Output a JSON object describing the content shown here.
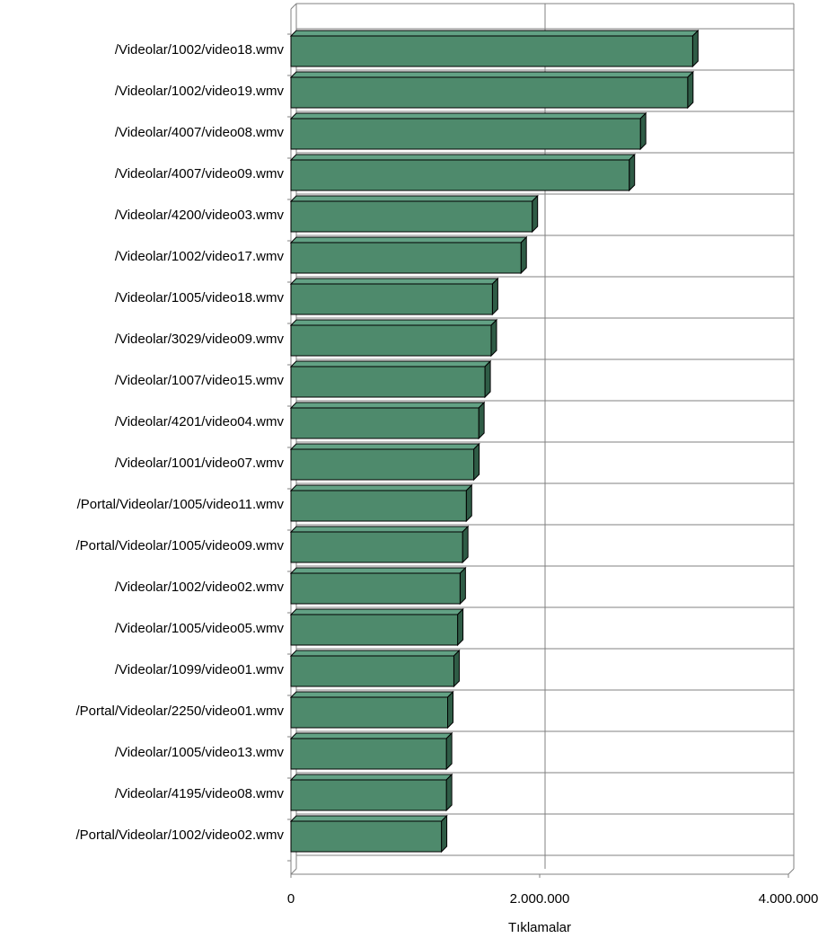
{
  "chart_data": {
    "type": "bar",
    "orientation": "horizontal",
    "bar_style": "3d",
    "categories": [
      "/Videolar/1002/video18.wmv",
      "/Videolar/1002/video19.wmv",
      "/Videolar/4007/video08.wmv",
      "/Videolar/4007/video09.wmv",
      "/Videolar/4200/video03.wmv",
      "/Videolar/1002/video17.wmv",
      "/Videolar/1005/video18.wmv",
      "/Videolar/3029/video09.wmv",
      "/Videolar/1007/video15.wmv",
      "/Videolar/4201/video04.wmv",
      "/Videolar/1001/video07.wmv",
      "/Portal/Videolar/1005/video11.wmv",
      "/Portal/Videolar/1005/video09.wmv",
      "/Videolar/1002/video02.wmv",
      "/Videolar/1005/video05.wmv",
      "/Videolar/1099/video01.wmv",
      "/Portal/Videolar/2250/video01.wmv",
      "/Videolar/1005/video13.wmv",
      "/Videolar/4195/video08.wmv",
      "/Portal/Videolar/1002/video02.wmv"
    ],
    "values": [
      3230000,
      3190000,
      2810000,
      2720000,
      1940000,
      1850000,
      1620000,
      1610000,
      1560000,
      1510000,
      1470000,
      1410000,
      1380000,
      1360000,
      1340000,
      1310000,
      1260000,
      1250000,
      1250000,
      1210000
    ],
    "xlabel": "Tıklamalar",
    "xlim": [
      0,
      4000000
    ],
    "x_ticks": [
      0,
      2000000,
      4000000
    ],
    "x_tick_labels": [
      "0",
      "2.000.000",
      "4.000.000"
    ],
    "grid": true,
    "colors": {
      "bar_front": "#4e8a6c",
      "bar_top": "#62a184",
      "bar_side": "#2f5c46",
      "bar_outline": "#000000",
      "grid": "#808080"
    }
  }
}
